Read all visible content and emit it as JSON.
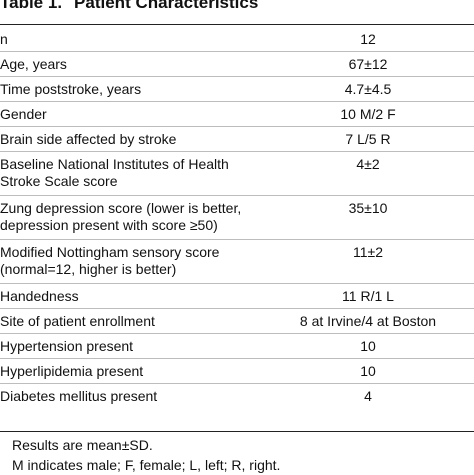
{
  "table": {
    "label": "Table 1.",
    "title": "Patient Characteristics",
    "rows": [
      {
        "label": "n",
        "value": "12"
      },
      {
        "label": "Age, years",
        "value": "67±12"
      },
      {
        "label": "Time poststroke, years",
        "value": "4.7±4.5"
      },
      {
        "label": "Gender",
        "value": "10 M/2 F"
      },
      {
        "label": "Brain side affected by stroke",
        "value": "7 L/5 R"
      },
      {
        "label": "Baseline National Institutes of Health Stroke Scale score",
        "value": "4±2"
      },
      {
        "label": "Zung depression score (lower is better, depression present with score ≥50)",
        "value": "35±10"
      },
      {
        "label": "Modified Nottingham sensory score (normal=12, higher is better)",
        "value": "11±2"
      },
      {
        "label": "Handedness",
        "value": "11 R/1 L"
      },
      {
        "label": "Site of patient enrollment",
        "value": "8 at Irvine/4 at Boston"
      },
      {
        "label": "Hypertension present",
        "value": "10"
      },
      {
        "label": "Hyperlipidemia present",
        "value": "10"
      },
      {
        "label": "Diabetes mellitus present",
        "value": "4"
      }
    ],
    "footnotes": [
      "Results are mean±SD.",
      "M indicates male; F, female; L, left; R, right."
    ]
  }
}
